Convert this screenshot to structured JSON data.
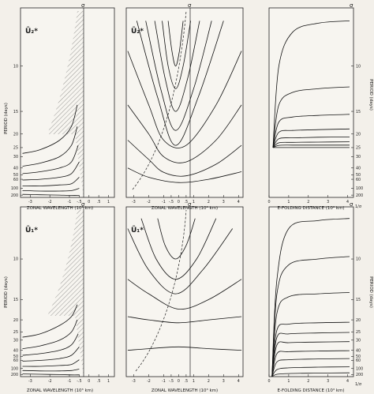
{
  "figure": {
    "rows": [
      {
        "symbol": "Ū₂*",
        "middle_symbol": "Ū₂*"
      },
      {
        "symbol": "Ū₁*",
        "middle_symbol": "Ū₁*"
      }
    ],
    "sigma_label": "σ",
    "left_axis_label": "PERIOD (days)",
    "right_axis_label": "PERIOD (days)",
    "x_label_left": "ZONAL WAVELENGTH (10³ km)",
    "x_label_middle": "ZONAL WAVELENGTH (10³ km)",
    "x_label_right": "E-FOLDING DISTANCE (10³ km)",
    "period_ticks": [
      "10",
      "15",
      "20",
      "25",
      "30",
      "40",
      "50",
      "60",
      "100",
      "200"
    ],
    "x_ticks_left": [
      "-3",
      "-2",
      "-1",
      "-.5",
      "0",
      ".5",
      "1"
    ],
    "x_ticks_middle": [
      "-3",
      "-2",
      "-1",
      "-.5",
      "0",
      ".5",
      "1",
      "2",
      "3",
      "4"
    ],
    "x_ticks_right": [
      "0",
      "1",
      "2",
      "3",
      "4"
    ],
    "right_end_label": "1/σ"
  },
  "chart_data": [
    {
      "type": "line",
      "panel": "top-left",
      "title": "",
      "xlabel": "ZONAL WAVELENGTH (10³ km)",
      "ylabel": "PERIOD (days)",
      "xlim": [
        -3.5,
        1.3
      ],
      "y_scale": "reciprocal",
      "ylim": [
        7,
        300
      ],
      "x_tick_values": [
        -3,
        -2,
        -1,
        -0.5,
        0,
        0.5,
        1
      ],
      "y_tick_values": [
        10,
        15,
        20,
        25,
        30,
        40,
        50,
        60,
        100,
        200
      ],
      "series": [
        {
          "x": [
            -3.4,
            -2.5,
            -1.5,
            -0.9,
            -0.6
          ],
          "y": [
            28,
            26,
            22,
            18,
            14
          ]
        },
        {
          "x": [
            -3.4,
            -2.5,
            -1.5,
            -0.9,
            -0.6
          ],
          "y": [
            38,
            35,
            30,
            24,
            18
          ]
        },
        {
          "x": [
            -3.4,
            -2.5,
            -1.5,
            -0.9,
            -0.55
          ],
          "y": [
            48,
            45,
            40,
            34,
            24
          ]
        },
        {
          "x": [
            -3.4,
            -2.5,
            -1.5,
            -0.9,
            -0.5
          ],
          "y": [
            62,
            60,
            55,
            48,
            34
          ]
        },
        {
          "x": [
            -3.4,
            -2.5,
            -1.5,
            -0.9,
            -0.5
          ],
          "y": [
            85,
            85,
            80,
            75,
            55
          ]
        },
        {
          "x": [
            -3.4,
            -2.5,
            -1.5,
            -0.9,
            -0.5
          ],
          "y": [
            120,
            125,
            125,
            120,
            100
          ]
        },
        {
          "x": [
            -3.4,
            -2.5,
            -1.5,
            -0.9,
            -0.5
          ],
          "y": [
            180,
            190,
            200,
            210,
            210
          ]
        }
      ]
    },
    {
      "type": "line",
      "panel": "top-middle",
      "title": "",
      "xlabel": "ZONAL WAVELENGTH (10³ km)",
      "ylabel": "",
      "xlim": [
        -3.5,
        4.3
      ],
      "y_scale": "reciprocal",
      "ylim": [
        7,
        300
      ],
      "x_tick_values": [
        -3,
        -2,
        -1,
        -0.5,
        0,
        0.5,
        1,
        2,
        3,
        4
      ],
      "series": [
        {
          "x": [
            -0.7,
            -0.45,
            -0.2,
            0.05,
            0.3
          ],
          "y": [
            7.5,
            9,
            10,
            9,
            7.5
          ]
        },
        {
          "x": [
            -1.1,
            -0.7,
            -0.2,
            0.3,
            0.8
          ],
          "y": [
            7.5,
            10,
            12,
            10,
            7.5
          ]
        },
        {
          "x": [
            -1.6,
            -0.9,
            -0.2,
            0.6,
            1.4
          ],
          "y": [
            7.5,
            11,
            15,
            11,
            7.5
          ]
        },
        {
          "x": [
            -2.2,
            -1.2,
            -0.2,
            1.0,
            2.2
          ],
          "y": [
            7.5,
            12,
            19,
            12,
            7.5
          ]
        },
        {
          "x": [
            -2.8,
            -1.4,
            -0.2,
            1.3,
            3.0
          ],
          "y": [
            7.5,
            13,
            24,
            13,
            7.5
          ]
        },
        {
          "x": [
            -3.4,
            -2,
            -1,
            0.5,
            2.5,
            4.2
          ],
          "y": [
            9,
            14,
            22,
            24,
            14,
            9
          ]
        },
        {
          "x": [
            -3.4,
            -2,
            -1,
            0.5,
            2.5,
            4.2
          ],
          "y": [
            14,
            20,
            30,
            34,
            22,
            14
          ]
        },
        {
          "x": [
            -3.4,
            -2,
            -1,
            0.5,
            2.5,
            4.2
          ],
          "y": [
            22,
            32,
            46,
            52,
            36,
            24
          ]
        },
        {
          "x": [
            -3.4,
            -2,
            0,
            2,
            4.2
          ],
          "y": [
            40,
            55,
            70,
            60,
            45
          ]
        }
      ]
    },
    {
      "type": "line",
      "panel": "top-right",
      "title": "",
      "xlabel": "E-FOLDING DISTANCE (10³ km)",
      "ylabel": "PERIOD (days)",
      "xlim": [
        0,
        4.3
      ],
      "y_scale": "reciprocal",
      "ylim": [
        7,
        300
      ],
      "x_tick_values": [
        0,
        1,
        2,
        3,
        4
      ],
      "series": [
        {
          "x": [
            0.2,
            0.5,
            1.2,
            2.5,
            4.1
          ],
          "y": [
            25,
            10,
            8,
            7.6,
            7.5
          ]
        },
        {
          "x": [
            0.2,
            0.5,
            1.2,
            2.5,
            4.1
          ],
          "y": [
            25,
            14,
            12.4,
            12,
            11.8
          ]
        },
        {
          "x": [
            0.2,
            0.5,
            1.2,
            2.5,
            4.1
          ],
          "y": [
            25,
            17,
            16,
            15.7,
            15.5
          ]
        },
        {
          "x": [
            0.2,
            0.5,
            1.2,
            2.5,
            4.1
          ],
          "y": [
            25,
            19.5,
            19,
            18.8,
            18.6
          ]
        },
        {
          "x": [
            0.2,
            0.5,
            1.2,
            2.5,
            4.1
          ],
          "y": [
            25,
            21.5,
            21.2,
            21,
            20.9
          ]
        },
        {
          "x": [
            0.2,
            0.5,
            1.2,
            2.5,
            4.1
          ],
          "y": [
            25,
            23,
            22.8,
            22.7,
            22.6
          ]
        },
        {
          "x": [
            0.2,
            0.5,
            1.2,
            2.5,
            4.1
          ],
          "y": [
            25,
            24,
            23.9,
            23.9,
            23.9
          ]
        },
        {
          "x": [
            0.2,
            4.1
          ],
          "y": [
            25,
            25
          ]
        }
      ]
    },
    {
      "type": "line",
      "panel": "bottom-left",
      "title": "",
      "xlabel": "ZONAL WAVELENGTH (10³ km)",
      "ylabel": "PERIOD (days)",
      "xlim": [
        -3.5,
        1.3
      ],
      "y_scale": "reciprocal",
      "ylim": [
        7,
        300
      ],
      "x_tick_values": [
        -3,
        -2,
        -1,
        -0.5,
        0,
        0.5,
        1
      ],
      "y_tick_values": [
        10,
        15,
        20,
        25,
        30,
        40,
        50,
        60,
        100,
        200
      ],
      "series": [
        {
          "x": [
            -3.4,
            -2.5,
            -1.5,
            -0.9,
            -0.6
          ],
          "y": [
            28,
            26,
            22,
            19,
            16
          ]
        },
        {
          "x": [
            -3.4,
            -2.5,
            -1.5,
            -0.9,
            -0.6
          ],
          "y": [
            38,
            35,
            30,
            25,
            20
          ]
        },
        {
          "x": [
            -3.4,
            -2.5,
            -1.5,
            -0.9,
            -0.55
          ],
          "y": [
            48,
            45,
            40,
            34,
            26
          ]
        },
        {
          "x": [
            -3.4,
            -2.5,
            -1.5,
            -0.9,
            -0.5
          ],
          "y": [
            62,
            60,
            55,
            48,
            36
          ]
        },
        {
          "x": [
            -3.4,
            -2.5,
            -1.5,
            -0.9,
            -0.5
          ],
          "y": [
            85,
            85,
            80,
            75,
            58
          ]
        },
        {
          "x": [
            -3.4,
            -2.5,
            -1.5,
            -0.9,
            -0.5
          ],
          "y": [
            120,
            125,
            125,
            120,
            105
          ]
        },
        {
          "x": [
            -3.4,
            -2.5,
            -1.5,
            -0.9,
            -0.5
          ],
          "y": [
            180,
            190,
            200,
            210,
            210
          ]
        }
      ]
    },
    {
      "type": "line",
      "panel": "bottom-middle",
      "title": "",
      "xlabel": "ZONAL WAVELENGTH (10³ km)",
      "ylabel": "",
      "xlim": [
        -3.5,
        4.3
      ],
      "y_scale": "reciprocal",
      "ylim": [
        7,
        300
      ],
      "x_tick_values": [
        -3,
        -2,
        -1,
        -0.5,
        0,
        0.5,
        1,
        2,
        3,
        4
      ],
      "series": [
        {
          "x": [
            -1.4,
            -0.9,
            -0.2,
            0.5,
            1.1
          ],
          "y": [
            7.5,
            9,
            10,
            9,
            7.5
          ]
        },
        {
          "x": [
            -2.5,
            -1.5,
            -0.2,
            1.2,
            2.5
          ],
          "y": [
            7.5,
            10,
            12,
            10,
            7.5
          ]
        },
        {
          "x": [
            -3.4,
            -2,
            -0.2,
            1.6,
            3.6
          ],
          "y": [
            8,
            11,
            14,
            11,
            8
          ]
        },
        {
          "x": [
            -3.4,
            -2,
            0,
            2,
            4.2
          ],
          "y": [
            12,
            14,
            17,
            15,
            12
          ]
        },
        {
          "x": [
            -3.4,
            -2,
            0,
            2,
            4.2
          ],
          "y": [
            19,
            20,
            21,
            20,
            19
          ]
        },
        {
          "x": [
            -3.4,
            -2,
            0,
            2,
            4.2
          ],
          "y": [
            40,
            38,
            36,
            38,
            40
          ]
        }
      ]
    },
    {
      "type": "line",
      "panel": "bottom-right",
      "title": "",
      "xlabel": "E-FOLDING DISTANCE (10³ km)",
      "ylabel": "PERIOD (days)",
      "xlim": [
        0,
        4.3
      ],
      "y_scale": "reciprocal",
      "ylim": [
        7,
        300
      ],
      "x_tick_values": [
        0,
        1,
        2,
        3,
        4
      ],
      "series": [
        {
          "x": [
            0.15,
            0.4,
            1.0,
            2.5,
            4.1
          ],
          "y": [
            300,
            12,
            8,
            7.6,
            7.5
          ]
        },
        {
          "x": [
            0.15,
            0.4,
            1.0,
            2.5,
            4.1
          ],
          "y": [
            300,
            14,
            10.5,
            10,
            9.8
          ]
        },
        {
          "x": [
            0.15,
            0.4,
            1.0,
            2.5,
            4.1
          ],
          "y": [
            300,
            18,
            14.5,
            14,
            13.8
          ]
        },
        {
          "x": [
            0.15,
            0.4,
            1.0,
            2.5,
            4.1
          ],
          "y": [
            300,
            24,
            21.5,
            21,
            20.8
          ]
        },
        {
          "x": [
            0.15,
            0.4,
            1.0,
            2.5,
            4.1
          ],
          "y": [
            300,
            28,
            26,
            25.5,
            25.2
          ]
        },
        {
          "x": [
            0.15,
            0.4,
            1.0,
            2.5,
            4.1
          ],
          "y": [
            300,
            34,
            32,
            31.5,
            31.2
          ]
        },
        {
          "x": [
            0.15,
            0.4,
            1.0,
            2.5,
            4.1
          ],
          "y": [
            300,
            45,
            42,
            41,
            40.5
          ]
        },
        {
          "x": [
            0.15,
            0.4,
            1.0,
            2.5,
            4.1
          ],
          "y": [
            300,
            65,
            58,
            56,
            55
          ]
        },
        {
          "x": [
            0.15,
            0.4,
            1.0,
            2.5,
            4.1
          ],
          "y": [
            300,
            110,
            95,
            90,
            88
          ]
        },
        {
          "x": [
            0.15,
            0.4,
            1.0,
            2.5,
            4.1
          ],
          "y": [
            300,
            190,
            170,
            160,
            155
          ]
        }
      ]
    }
  ]
}
